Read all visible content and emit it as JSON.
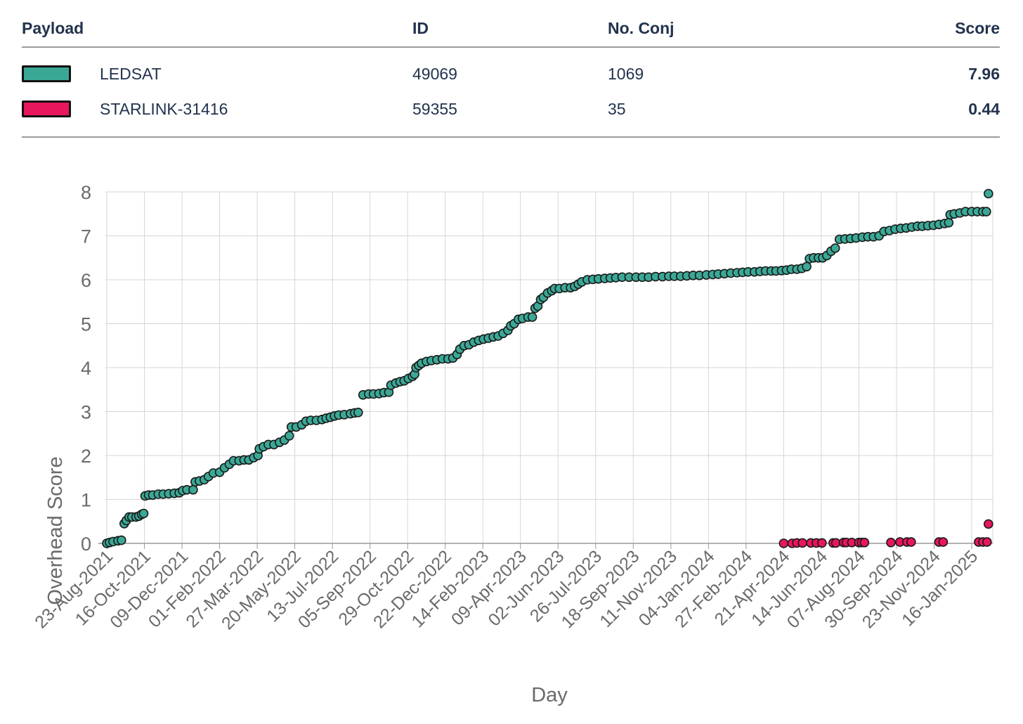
{
  "table": {
    "headers": {
      "payload": "Payload",
      "id": "ID",
      "conj": "No. Conj",
      "score": "Score"
    },
    "rows": [
      {
        "name": "LEDSAT",
        "id": "49069",
        "conj": "1069",
        "score": "7.96",
        "color": "#3ba896"
      },
      {
        "name": "STARLINK-31416",
        "id": "59355",
        "conj": "35",
        "score": "0.44",
        "color": "#e8175d"
      }
    ]
  },
  "chart_data": {
    "type": "scatter",
    "title": "",
    "xlabel": "Day",
    "ylabel": "Overhead Score",
    "ylim": [
      0,
      8
    ],
    "yticks": [
      0,
      1,
      2,
      3,
      4,
      5,
      6,
      7,
      8
    ],
    "xlim": [
      "2021-08-23",
      "2025-02-13"
    ],
    "xtick_dates": [
      "2021-08-23",
      "2021-10-16",
      "2021-12-09",
      "2022-02-01",
      "2022-03-27",
      "2022-05-20",
      "2022-07-13",
      "2022-09-05",
      "2022-10-29",
      "2022-12-22",
      "2023-02-14",
      "2023-04-09",
      "2023-06-02",
      "2023-07-26",
      "2023-09-18",
      "2023-11-11",
      "2024-01-04",
      "2024-02-27",
      "2024-04-21",
      "2024-06-14",
      "2024-08-07",
      "2024-09-30",
      "2024-11-23",
      "2025-01-16"
    ],
    "xtick_labels": [
      "23-Aug-2021",
      "16-Oct-2021",
      "09-Dec-2021",
      "01-Feb-2022",
      "27-Mar-2022",
      "20-May-2022",
      "13-Jul-2022",
      "05-Sep-2022",
      "29-Oct-2022",
      "22-Dec-2022",
      "14-Feb-2023",
      "09-Apr-2023",
      "02-Jun-2023",
      "26-Jul-2023",
      "18-Sep-2023",
      "11-Nov-2023",
      "04-Jan-2024",
      "27-Feb-2024",
      "21-Apr-2024",
      "14-Jun-2024",
      "07-Aug-2024",
      "30-Sep-2024",
      "23-Nov-2024",
      "16-Jan-2025"
    ],
    "grid": true,
    "series": [
      {
        "name": "LEDSAT",
        "color": "#3ba896",
        "points": [
          [
            "2021-08-23",
            0.0
          ],
          [
            "2021-08-27",
            0.02
          ],
          [
            "2021-09-01",
            0.04
          ],
          [
            "2021-09-08",
            0.06
          ],
          [
            "2021-09-13",
            0.07
          ],
          [
            "2021-09-17",
            0.45
          ],
          [
            "2021-09-20",
            0.52
          ],
          [
            "2021-09-24",
            0.6
          ],
          [
            "2021-09-28",
            0.6
          ],
          [
            "2021-10-04",
            0.6
          ],
          [
            "2021-10-08",
            0.62
          ],
          [
            "2021-10-12",
            0.66
          ],
          [
            "2021-10-15",
            0.68
          ],
          [
            "2021-10-17",
            1.08
          ],
          [
            "2021-10-22",
            1.1
          ],
          [
            "2021-10-28",
            1.1
          ],
          [
            "2021-11-05",
            1.12
          ],
          [
            "2021-11-12",
            1.12
          ],
          [
            "2021-11-20",
            1.13
          ],
          [
            "2021-11-28",
            1.14
          ],
          [
            "2021-12-05",
            1.15
          ],
          [
            "2021-12-10",
            1.2
          ],
          [
            "2021-12-16",
            1.22
          ],
          [
            "2021-12-25",
            1.22
          ],
          [
            "2021-12-28",
            1.4
          ],
          [
            "2022-01-03",
            1.42
          ],
          [
            "2022-01-10",
            1.45
          ],
          [
            "2022-01-16",
            1.52
          ],
          [
            "2022-01-23",
            1.6
          ],
          [
            "2022-02-01",
            1.62
          ],
          [
            "2022-02-08",
            1.72
          ],
          [
            "2022-02-15",
            1.8
          ],
          [
            "2022-02-21",
            1.88
          ],
          [
            "2022-03-01",
            1.88
          ],
          [
            "2022-03-08",
            1.9
          ],
          [
            "2022-03-15",
            1.9
          ],
          [
            "2022-03-22",
            1.95
          ],
          [
            "2022-03-28",
            2.0
          ],
          [
            "2022-03-30",
            2.15
          ],
          [
            "2022-04-05",
            2.2
          ],
          [
            "2022-04-12",
            2.25
          ],
          [
            "2022-04-20",
            2.25
          ],
          [
            "2022-04-28",
            2.3
          ],
          [
            "2022-05-05",
            2.35
          ],
          [
            "2022-05-12",
            2.45
          ],
          [
            "2022-05-15",
            2.65
          ],
          [
            "2022-05-22",
            2.65
          ],
          [
            "2022-05-30",
            2.7
          ],
          [
            "2022-06-05",
            2.78
          ],
          [
            "2022-06-12",
            2.8
          ],
          [
            "2022-06-20",
            2.8
          ],
          [
            "2022-06-28",
            2.82
          ],
          [
            "2022-07-04",
            2.85
          ],
          [
            "2022-07-10",
            2.87
          ],
          [
            "2022-07-16",
            2.9
          ],
          [
            "2022-07-22",
            2.92
          ],
          [
            "2022-07-30",
            2.93
          ],
          [
            "2022-08-08",
            2.95
          ],
          [
            "2022-08-14",
            2.97
          ],
          [
            "2022-08-19",
            2.98
          ],
          [
            "2022-08-26",
            3.38
          ],
          [
            "2022-09-03",
            3.4
          ],
          [
            "2022-09-10",
            3.4
          ],
          [
            "2022-09-18",
            3.41
          ],
          [
            "2022-09-25",
            3.43
          ],
          [
            "2022-10-02",
            3.44
          ],
          [
            "2022-10-05",
            3.6
          ],
          [
            "2022-10-12",
            3.65
          ],
          [
            "2022-10-18",
            3.68
          ],
          [
            "2022-10-24",
            3.7
          ],
          [
            "2022-10-30",
            3.75
          ],
          [
            "2022-11-05",
            3.8
          ],
          [
            "2022-11-08",
            3.85
          ],
          [
            "2022-11-10",
            4.0
          ],
          [
            "2022-11-14",
            4.05
          ],
          [
            "2022-11-18",
            4.1
          ],
          [
            "2022-11-25",
            4.14
          ],
          [
            "2022-12-02",
            4.16
          ],
          [
            "2022-12-10",
            4.18
          ],
          [
            "2022-12-18",
            4.2
          ],
          [
            "2022-12-26",
            4.2
          ],
          [
            "2023-01-02",
            4.22
          ],
          [
            "2023-01-08",
            4.3
          ],
          [
            "2023-01-12",
            4.42
          ],
          [
            "2023-01-18",
            4.5
          ],
          [
            "2023-01-25",
            4.52
          ],
          [
            "2023-02-01",
            4.58
          ],
          [
            "2023-02-08",
            4.62
          ],
          [
            "2023-02-15",
            4.65
          ],
          [
            "2023-02-22",
            4.67
          ],
          [
            "2023-03-01",
            4.7
          ],
          [
            "2023-03-08",
            4.72
          ],
          [
            "2023-03-15",
            4.78
          ],
          [
            "2023-03-22",
            4.85
          ],
          [
            "2023-03-26",
            4.95
          ],
          [
            "2023-03-31",
            5.0
          ],
          [
            "2023-04-06",
            5.1
          ],
          [
            "2023-04-12",
            5.12
          ],
          [
            "2023-04-20",
            5.15
          ],
          [
            "2023-04-26",
            5.15
          ],
          [
            "2023-04-30",
            5.35
          ],
          [
            "2023-05-04",
            5.4
          ],
          [
            "2023-05-08",
            5.55
          ],
          [
            "2023-05-12",
            5.6
          ],
          [
            "2023-05-18",
            5.7
          ],
          [
            "2023-05-24",
            5.75
          ],
          [
            "2023-05-28",
            5.8
          ],
          [
            "2023-06-04",
            5.8
          ],
          [
            "2023-06-12",
            5.82
          ],
          [
            "2023-06-20",
            5.82
          ],
          [
            "2023-06-26",
            5.85
          ],
          [
            "2023-07-01",
            5.9
          ],
          [
            "2023-07-06",
            5.95
          ],
          [
            "2023-07-14",
            6.0
          ],
          [
            "2023-07-22",
            6.01
          ],
          [
            "2023-07-30",
            6.02
          ],
          [
            "2023-08-08",
            6.03
          ],
          [
            "2023-08-16",
            6.04
          ],
          [
            "2023-08-24",
            6.05
          ],
          [
            "2023-09-02",
            6.06
          ],
          [
            "2023-09-12",
            6.06
          ],
          [
            "2023-09-22",
            6.06
          ],
          [
            "2023-10-01",
            6.06
          ],
          [
            "2023-10-10",
            6.06
          ],
          [
            "2023-10-20",
            6.07
          ],
          [
            "2023-10-30",
            6.07
          ],
          [
            "2023-11-08",
            6.08
          ],
          [
            "2023-11-16",
            6.08
          ],
          [
            "2023-11-25",
            6.08
          ],
          [
            "2023-12-04",
            6.09
          ],
          [
            "2023-12-13",
            6.1
          ],
          [
            "2023-12-22",
            6.1
          ],
          [
            "2024-01-01",
            6.11
          ],
          [
            "2024-01-10",
            6.12
          ],
          [
            "2024-01-18",
            6.13
          ],
          [
            "2024-01-27",
            6.14
          ],
          [
            "2024-02-05",
            6.15
          ],
          [
            "2024-02-14",
            6.16
          ],
          [
            "2024-02-22",
            6.17
          ],
          [
            "2024-03-01",
            6.18
          ],
          [
            "2024-03-10",
            6.18
          ],
          [
            "2024-03-18",
            6.19
          ],
          [
            "2024-03-26",
            6.2
          ],
          [
            "2024-04-03",
            6.2
          ],
          [
            "2024-04-10",
            6.2
          ],
          [
            "2024-04-18",
            6.21
          ],
          [
            "2024-04-25",
            6.22
          ],
          [
            "2024-05-02",
            6.24
          ],
          [
            "2024-05-10",
            6.24
          ],
          [
            "2024-05-17",
            6.26
          ],
          [
            "2024-05-24",
            6.3
          ],
          [
            "2024-05-28",
            6.48
          ],
          [
            "2024-06-03",
            6.5
          ],
          [
            "2024-06-10",
            6.5
          ],
          [
            "2024-06-16",
            6.5
          ],
          [
            "2024-06-22",
            6.55
          ],
          [
            "2024-06-28",
            6.65
          ],
          [
            "2024-07-04",
            6.72
          ],
          [
            "2024-07-10",
            6.92
          ],
          [
            "2024-07-18",
            6.93
          ],
          [
            "2024-07-26",
            6.94
          ],
          [
            "2024-08-03",
            6.95
          ],
          [
            "2024-08-12",
            6.97
          ],
          [
            "2024-08-20",
            6.98
          ],
          [
            "2024-08-28",
            6.98
          ],
          [
            "2024-09-05",
            7.0
          ],
          [
            "2024-09-12",
            7.1
          ],
          [
            "2024-09-20",
            7.12
          ],
          [
            "2024-09-28",
            7.15
          ],
          [
            "2024-10-06",
            7.17
          ],
          [
            "2024-10-14",
            7.18
          ],
          [
            "2024-10-22",
            7.2
          ],
          [
            "2024-10-30",
            7.22
          ],
          [
            "2024-11-06",
            7.22
          ],
          [
            "2024-11-14",
            7.23
          ],
          [
            "2024-11-22",
            7.24
          ],
          [
            "2024-11-30",
            7.26
          ],
          [
            "2024-12-08",
            7.28
          ],
          [
            "2024-12-14",
            7.3
          ],
          [
            "2024-12-16",
            7.48
          ],
          [
            "2024-12-22",
            7.5
          ],
          [
            "2024-12-30",
            7.52
          ],
          [
            "2025-01-07",
            7.55
          ],
          [
            "2025-01-16",
            7.55
          ],
          [
            "2025-01-24",
            7.55
          ],
          [
            "2025-02-01",
            7.55
          ],
          [
            "2025-02-06",
            7.55
          ],
          [
            "2025-02-09",
            7.96
          ]
        ]
      },
      {
        "name": "STARLINK-31416",
        "color": "#e8175d",
        "points": [
          [
            "2024-04-21",
            0.0
          ],
          [
            "2024-05-03",
            0.0
          ],
          [
            "2024-05-10",
            0.01
          ],
          [
            "2024-05-18",
            0.01
          ],
          [
            "2024-05-30",
            0.01
          ],
          [
            "2024-06-07",
            0.01
          ],
          [
            "2024-06-15",
            0.01
          ],
          [
            "2024-07-01",
            0.01
          ],
          [
            "2024-07-05",
            0.01
          ],
          [
            "2024-07-16",
            0.02
          ],
          [
            "2024-07-20",
            0.02
          ],
          [
            "2024-07-28",
            0.02
          ],
          [
            "2024-08-07",
            0.02
          ],
          [
            "2024-08-11",
            0.02
          ],
          [
            "2024-08-15",
            0.02
          ],
          [
            "2024-09-22",
            0.02
          ],
          [
            "2024-10-05",
            0.03
          ],
          [
            "2024-10-15",
            0.03
          ],
          [
            "2024-10-21",
            0.03
          ],
          [
            "2024-11-30",
            0.03
          ],
          [
            "2024-12-06",
            0.03
          ],
          [
            "2025-01-26",
            0.03
          ],
          [
            "2025-02-01",
            0.03
          ],
          [
            "2025-02-07",
            0.03
          ],
          [
            "2025-02-09",
            0.44
          ]
        ]
      }
    ]
  }
}
